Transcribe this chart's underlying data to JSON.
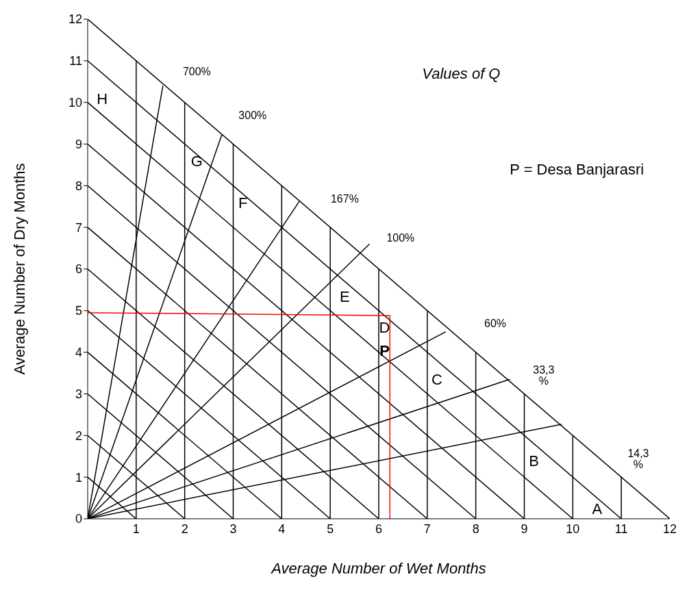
{
  "chart_data": {
    "type": "line",
    "xlabel": "Average Number of Wet Months",
    "ylabel": "Average Number of Dry Months",
    "xlim": [
      0,
      12
    ],
    "ylim": [
      0,
      12
    ],
    "xticks": [
      1,
      2,
      3,
      4,
      5,
      6,
      7,
      8,
      9,
      10,
      11,
      12
    ],
    "yticks": [
      0,
      1,
      2,
      3,
      4,
      5,
      6,
      7,
      8,
      9,
      10,
      11,
      12
    ],
    "grid": "x",
    "series": [
      {
        "color": "#000000",
        "x": [
          0,
          12
        ],
        "values": [
          12,
          0
        ]
      },
      {
        "color": "#000000",
        "x": [
          0,
          1
        ],
        "values": [
          1,
          0
        ]
      },
      {
        "color": "#000000",
        "x": [
          0,
          2
        ],
        "values": [
          2,
          0
        ]
      },
      {
        "color": "#000000",
        "x": [
          0,
          3
        ],
        "values": [
          3,
          0
        ]
      },
      {
        "color": "#000000",
        "x": [
          0,
          4
        ],
        "values": [
          4,
          0
        ]
      },
      {
        "color": "#000000",
        "x": [
          0,
          5
        ],
        "values": [
          5,
          0
        ]
      },
      {
        "color": "#000000",
        "x": [
          0,
          6
        ],
        "values": [
          6,
          0
        ]
      },
      {
        "color": "#000000",
        "x": [
          0,
          7
        ],
        "values": [
          7,
          0
        ]
      },
      {
        "color": "#000000",
        "x": [
          0,
          8
        ],
        "values": [
          8,
          0
        ]
      },
      {
        "color": "#000000",
        "x": [
          0,
          9
        ],
        "values": [
          9,
          0
        ]
      },
      {
        "color": "#000000",
        "x": [
          0,
          10
        ],
        "values": [
          10,
          0
        ]
      },
      {
        "color": "#000000",
        "x": [
          0,
          11
        ],
        "values": [
          11,
          0
        ]
      },
      {
        "color": "#000000",
        "x": [
          0,
          1.55
        ],
        "values": [
          0,
          10.4
        ]
      },
      {
        "color": "#000000",
        "x": [
          0,
          2.77
        ],
        "values": [
          0,
          9.24
        ]
      },
      {
        "color": "#000000",
        "x": [
          0,
          4.36
        ],
        "values": [
          0,
          7.62
        ]
      },
      {
        "color": "#000000",
        "x": [
          0,
          5.81
        ],
        "values": [
          0,
          6.6
        ]
      },
      {
        "color": "#000000",
        "x": [
          0,
          7.38
        ],
        "values": [
          0,
          4.49
        ]
      },
      {
        "color": "#000000",
        "x": [
          0,
          8.7
        ],
        "values": [
          0,
          3.35
        ]
      },
      {
        "color": "#000000",
        "x": [
          0,
          9.77
        ],
        "values": [
          0,
          2.27
        ]
      },
      {
        "color": "#ff0000",
        "x": [
          0,
          6.23,
          6.23
        ],
        "values": [
          4.95,
          4.88,
          0
        ]
      }
    ],
    "annotations": [
      "Values of Q",
      "P = Desa Banjarasri",
      "700%",
      "300%",
      "167%",
      "100%",
      "60%",
      "33,3\n%",
      "14,3\n%",
      "H",
      "G",
      "F",
      "E",
      "D",
      "P",
      "C",
      "B",
      "A"
    ]
  }
}
